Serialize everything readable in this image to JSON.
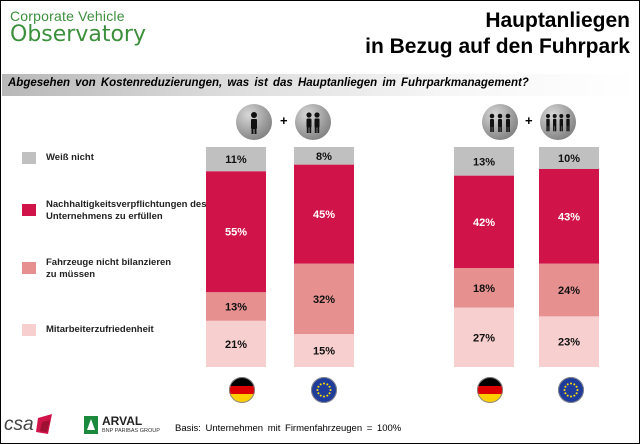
{
  "header": {
    "logo_line1": "Corporate Vehicle",
    "logo_line2": "Observatory",
    "title_line1": "Hauptanliegen",
    "title_line2": "in Bezug auf den Fuhrpark"
  },
  "question": "Abgesehen von Kostenreduzierungen, was ist das Hauptanliegen im Fuhrparkmanagement?",
  "legend": [
    {
      "label": "Weiß nicht",
      "color": "#c0c0c0"
    },
    {
      "label": "Nachhaltigkeitsverpflichtungen des Unternehmens zu erfüllen",
      "color": "#d0144a"
    },
    {
      "label": "Fahrzeuge nicht bilanzieren zu müssen",
      "color": "#e69090"
    },
    {
      "label": "Mitarbeiterzufriedenheit",
      "color": "#f8cfcf"
    }
  ],
  "groups": [
    {
      "icons": [
        "person-icon",
        "two-persons-icon"
      ]
    },
    {
      "icons": [
        "three-persons-icon",
        "four-persons-icon"
      ]
    }
  ],
  "chart_data": {
    "type": "bar",
    "stacked": true,
    "categories": [
      "Deutschland (kleine Firmen)",
      "Europa (kleine Firmen)",
      "Deutschland (große Firmen)",
      "Europa (große Firmen)"
    ],
    "flags": [
      "germany-flag-icon",
      "eu-flag-icon",
      "germany-flag-icon",
      "eu-flag-icon"
    ],
    "series": [
      {
        "name": "Mitarbeiterzufriedenheit",
        "color": "#f8cfcf",
        "values": [
          21,
          15,
          27,
          23
        ],
        "value_labels": [
          "21%",
          "15%",
          "27%",
          "23%"
        ]
      },
      {
        "name": "Fahrzeuge nicht bilanzieren zu müssen",
        "color": "#e69090",
        "values": [
          13,
          32,
          18,
          24
        ],
        "value_labels": [
          "13%",
          "32%",
          "18%",
          "24%"
        ]
      },
      {
        "name": "Nachhaltigkeitsverpflichtungen des Unternehmens zu erfüllen",
        "color": "#d0144a",
        "values": [
          55,
          45,
          42,
          43
        ],
        "value_labels": [
          "55%",
          "45%",
          "42%",
          "43%"
        ]
      },
      {
        "name": "Weiß nicht",
        "color": "#c0c0c0",
        "values": [
          11,
          8,
          13,
          10
        ],
        "value_labels": [
          "11%",
          "8%",
          "13%",
          "10%"
        ]
      }
    ],
    "unit": "%",
    "ylim": [
      0,
      100
    ]
  },
  "footer": {
    "basis": "Basis: Unternehmen mit Firmenfahrzeugen = 100%",
    "csa_logo": "csa",
    "arval_name": "ARVAL",
    "arval_sub": "BNP PARIBAS GROUP"
  }
}
